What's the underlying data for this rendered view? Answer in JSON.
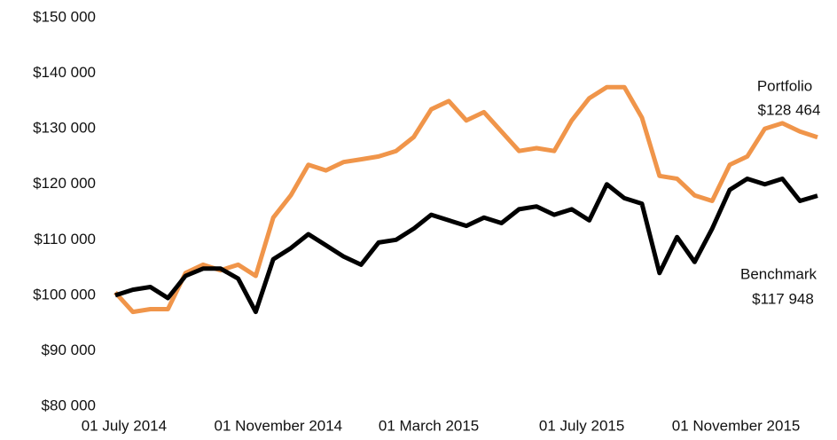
{
  "chart_data": {
    "type": "line",
    "x": [
      "2014-06-24",
      "2014-07-08",
      "2014-07-22",
      "2014-08-05",
      "2014-08-19",
      "2014-09-02",
      "2014-09-16",
      "2014-09-30",
      "2014-10-14",
      "2014-10-28",
      "2014-11-11",
      "2014-11-25",
      "2014-12-09",
      "2014-12-23",
      "2015-01-06",
      "2015-01-20",
      "2015-02-03",
      "2015-02-17",
      "2015-03-03",
      "2015-03-17",
      "2015-03-31",
      "2015-04-14",
      "2015-04-28",
      "2015-05-12",
      "2015-05-26",
      "2015-06-09",
      "2015-06-23",
      "2015-07-07",
      "2015-07-21",
      "2015-08-04",
      "2015-08-18",
      "2015-09-01",
      "2015-09-15",
      "2015-09-29",
      "2015-10-13",
      "2015-10-27",
      "2015-11-10",
      "2015-11-24",
      "2015-12-08",
      "2015-12-22",
      "2016-01-05"
    ],
    "series": [
      {
        "name": "Portfolio",
        "end_label": "$128 464",
        "color": "#f0954a",
        "values": [
          100500,
          97000,
          97500,
          97500,
          104000,
          105500,
          104500,
          105500,
          103500,
          114000,
          118000,
          123500,
          122500,
          124000,
          124500,
          125000,
          126000,
          128500,
          133500,
          135000,
          131500,
          133000,
          129500,
          126000,
          126500,
          126000,
          131500,
          135500,
          137500,
          137500,
          132000,
          121500,
          121000,
          118000,
          117000,
          123500,
          125000,
          130000,
          131000,
          129500,
          128464
        ]
      },
      {
        "name": "Benchmark",
        "end_label": "$117 948",
        "color": "#000000",
        "values": [
          100000,
          101000,
          101500,
          99500,
          103500,
          104800,
          104800,
          103000,
          97000,
          106500,
          108500,
          111000,
          109000,
          107000,
          105500,
          109500,
          110000,
          112000,
          114500,
          113500,
          112500,
          114000,
          113000,
          115500,
          116000,
          114500,
          115500,
          113500,
          120000,
          117500,
          116500,
          104000,
          110500,
          106000,
          112000,
          119000,
          121000,
          120000,
          121000,
          117000,
          117948
        ]
      }
    ],
    "xlim": [
      "2014-06-24",
      "2016-01-05"
    ],
    "xticks": [
      {
        "value": "2014-07-01",
        "label": "01 July 2014"
      },
      {
        "value": "2014-11-01",
        "label": "01 November 2014"
      },
      {
        "value": "2015-03-01",
        "label": "01 March 2015"
      },
      {
        "value": "2015-07-01",
        "label": "01 July 2015"
      },
      {
        "value": "2015-11-01",
        "label": "01 November 2015"
      }
    ],
    "ylim": [
      80000,
      150000
    ],
    "yticks": [
      {
        "value": 80000,
        "label": "$80 000"
      },
      {
        "value": 90000,
        "label": "$90 000"
      },
      {
        "value": 100000,
        "label": "$100 000"
      },
      {
        "value": 110000,
        "label": "$110 000"
      },
      {
        "value": 120000,
        "label": "$120 000"
      },
      {
        "value": 130000,
        "label": "$130 000"
      },
      {
        "value": 140000,
        "label": "$140 000"
      },
      {
        "value": 150000,
        "label": "$150 000"
      }
    ],
    "grid": false
  }
}
